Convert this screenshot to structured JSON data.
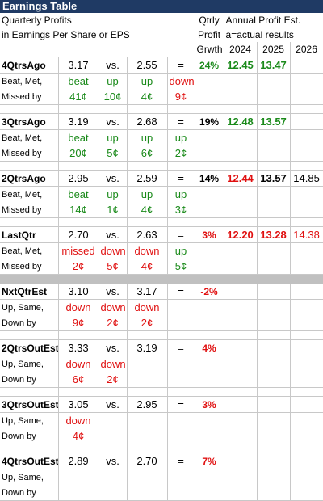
{
  "title": "Earnings Table",
  "header": {
    "line1": "Quarterly Profits",
    "line2": "in Earnings Per Share or EPS",
    "qtrly": "Qtrly",
    "profit": "Profit",
    "grwth": "Grwth",
    "annual": "Annual Profit Est.",
    "actual": "a=actual results",
    "years": [
      "2024",
      "2025",
      "2026"
    ]
  },
  "sections": [
    {
      "label": "4QtrsAgo",
      "cur": "3.17",
      "vs": "vs.",
      "prev": "2.55",
      "eq": "=",
      "change": "down",
      "growth": "24%",
      "growth_color": "g",
      "annual": [
        {
          "v": "12.45",
          "c": "g"
        },
        {
          "v": "13.47",
          "c": "g"
        },
        {
          "v": "",
          "c": "blk"
        }
      ],
      "row2_label": "Beat, Met,",
      "row2": [
        "beat",
        "up",
        "up",
        "down"
      ],
      "row2_colors": [
        "g",
        "g",
        "g",
        "red"
      ],
      "row3_label": "Missed by",
      "row3": [
        "41¢",
        "10¢",
        "4¢",
        "9¢"
      ],
      "row3_colors": [
        "g",
        "g",
        "g",
        "red"
      ]
    },
    {
      "label": "3QtrsAgo",
      "cur": "3.19",
      "vs": "vs.",
      "prev": "2.68",
      "eq": "=",
      "change": "",
      "growth": "19%",
      "growth_color": "blk",
      "annual": [
        {
          "v": "12.48",
          "c": "g"
        },
        {
          "v": "13.57",
          "c": "g"
        },
        {
          "v": "",
          "c": "blk"
        }
      ],
      "row2_label": "Beat, Met,",
      "row2": [
        "beat",
        "up",
        "up",
        "up"
      ],
      "row2_colors": [
        "g",
        "g",
        "g",
        "g"
      ],
      "row3_label": "Missed by",
      "row3": [
        "20¢",
        "5¢",
        "6¢",
        "2¢"
      ],
      "row3_colors": [
        "g",
        "g",
        "g",
        "g"
      ]
    },
    {
      "label": "2QtrsAgo",
      "cur": "2.95",
      "vs": "vs.",
      "prev": "2.59",
      "eq": "=",
      "change": "",
      "growth": "14%",
      "growth_color": "blk",
      "annual": [
        {
          "v": "12.44",
          "c": "red"
        },
        {
          "v": "13.57",
          "c": "blk"
        },
        {
          "v": "14.85",
          "c": "blk"
        }
      ],
      "row2_label": "Beat, Met,",
      "row2": [
        "beat",
        "up",
        "up",
        "up"
      ],
      "row2_colors": [
        "g",
        "g",
        "g",
        "g"
      ],
      "row3_label": "Missed by",
      "row3": [
        "14¢",
        "1¢",
        "4¢",
        "3¢"
      ],
      "row3_colors": [
        "g",
        "g",
        "g",
        "g"
      ]
    },
    {
      "label": "LastQtr",
      "cur": "2.70",
      "vs": "vs.",
      "prev": "2.63",
      "eq": "=",
      "change": "",
      "growth": "3%",
      "growth_color": "red",
      "annual": [
        {
          "v": "12.20",
          "c": "red"
        },
        {
          "v": "13.28",
          "c": "red"
        },
        {
          "v": "14.38",
          "c": "red"
        }
      ],
      "row2_label": "Beat, Met,",
      "row2": [
        "missed",
        "down",
        "down",
        "up"
      ],
      "row2_colors": [
        "red",
        "red",
        "red",
        "g"
      ],
      "row3_label": "Missed by",
      "row3": [
        "2¢",
        "5¢",
        "4¢",
        "5¢"
      ],
      "row3_colors": [
        "red",
        "red",
        "red",
        "g"
      ]
    },
    {
      "label": "NxtQtrEst",
      "cur": "3.10",
      "vs": "vs.",
      "prev": "3.17",
      "eq": "=",
      "growth": "-2%",
      "growth_color": "red",
      "row2_label": "Up, Same,",
      "row2": [
        "down",
        "down",
        "down",
        ""
      ],
      "row2_colors": [
        "red",
        "red",
        "red",
        "red"
      ],
      "row3_label": "Down by",
      "row3": [
        "9¢",
        "2¢",
        "2¢",
        ""
      ],
      "row3_colors": [
        "red",
        "red",
        "red",
        "red"
      ]
    },
    {
      "label": "2QtrsOutEst",
      "cur": "3.33",
      "vs": "vs.",
      "prev": "3.19",
      "eq": "=",
      "growth": "4%",
      "growth_color": "red",
      "row2_label": "Up, Same,",
      "row2": [
        "down",
        "down",
        "",
        ""
      ],
      "row2_colors": [
        "red",
        "red",
        "red",
        "red"
      ],
      "row3_label": "Down by",
      "row3": [
        "6¢",
        "2¢",
        "",
        ""
      ],
      "row3_colors": [
        "red",
        "red",
        "red",
        "red"
      ]
    },
    {
      "label": "3QtrsOutEst",
      "cur": "3.05",
      "vs": "vs.",
      "prev": "2.95",
      "eq": "=",
      "growth": "3%",
      "growth_color": "red",
      "row2_label": "Up, Same,",
      "row2": [
        "down",
        "",
        "",
        ""
      ],
      "row2_colors": [
        "red",
        "red",
        "red",
        "red"
      ],
      "row3_label": "Down by",
      "row3": [
        "4¢",
        "",
        "",
        ""
      ],
      "row3_colors": [
        "red",
        "red",
        "red",
        "red"
      ]
    },
    {
      "label": "4QtrsOutEst",
      "cur": "2.89",
      "vs": "vs.",
      "prev": "2.70",
      "eq": "=",
      "growth": "7%",
      "growth_color": "red",
      "row2_label": "Up, Same,",
      "row2": [
        "",
        "",
        "",
        ""
      ],
      "row2_colors": [
        "red",
        "red",
        "red",
        "red"
      ],
      "row3_label": "Down by",
      "row3": [
        "",
        "",
        "",
        ""
      ],
      "row3_colors": [
        "red",
        "red",
        "red",
        "red"
      ]
    }
  ],
  "colors": {
    "title_bg": "#1f3a64",
    "green": "#1a8a1a",
    "red": "#e01010",
    "separator": "#c0c0c0"
  }
}
